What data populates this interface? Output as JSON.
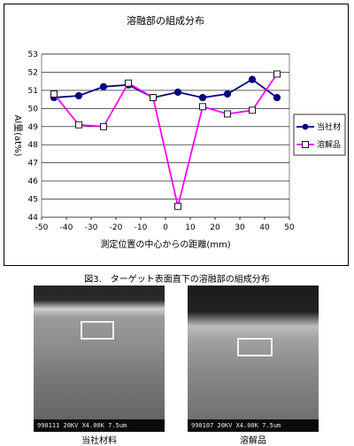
{
  "chart_data": {
    "type": "line",
    "title": "溶融部の組成分布",
    "xlabel": "測定位置の中心からの距離(mm)",
    "ylabel": "Al量(at%)",
    "xlim": [
      -50,
      50
    ],
    "ylim": [
      44,
      53
    ],
    "xticks": [
      -50,
      -40,
      -30,
      -20,
      -10,
      0,
      10,
      20,
      30,
      40,
      50
    ],
    "yticks": [
      44,
      45,
      46,
      47,
      48,
      49,
      50,
      51,
      52,
      53
    ],
    "grid": true,
    "legend_position": "right",
    "series": [
      {
        "name": "当社材",
        "color": "#000080",
        "marker": "circle",
        "x": [
          -45,
          -35,
          -25,
          -15,
          -5,
          5,
          15,
          25,
          35,
          45
        ],
        "y": [
          50.6,
          50.7,
          51.2,
          51.3,
          50.6,
          50.9,
          50.6,
          50.8,
          51.6,
          50.6
        ]
      },
      {
        "name": "溶解品",
        "color": "#ff00ff",
        "marker": "square-open",
        "x": [
          -45,
          -35,
          -25,
          -15,
          -5,
          5,
          15,
          25,
          35,
          45
        ],
        "y": [
          50.8,
          49.1,
          49.0,
          51.4,
          50.6,
          44.6,
          50.1,
          49.7,
          49.9,
          51.9
        ]
      }
    ]
  },
  "caption": "図3.　ターゲット表面直下の溶融部の組成分布",
  "photos": [
    {
      "label": "当社材料",
      "scale_text": "990111 20KV X4.00K 7.5um"
    },
    {
      "label": "溶解品",
      "scale_text": "990107 20KV X4.00K 7.5um"
    }
  ]
}
